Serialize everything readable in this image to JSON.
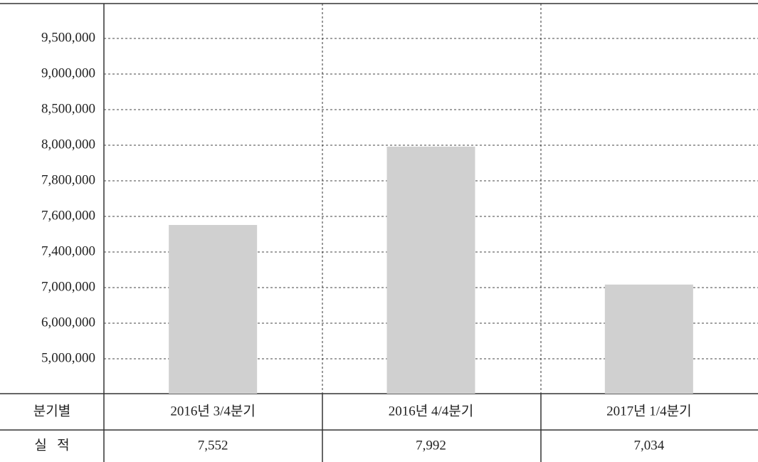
{
  "chart_data": {
    "type": "bar",
    "categories": [
      "2016년 3/4분기",
      "2016년 4/4분기",
      "2017년 1/4분기"
    ],
    "values": [
      7552000,
      7992000,
      7034000
    ],
    "value_labels": [
      "7,552",
      "7,992",
      "7,034"
    ],
    "row_labels": [
      "분기별",
      "실   적"
    ],
    "color": "#d0d0d0",
    "ylim": [
      4000000,
      10000000
    ],
    "yticks": [
      {
        "value": 5000000,
        "label": "5,000,000"
      },
      {
        "value": 6000000,
        "label": "6,000,000"
      },
      {
        "value": 7000000,
        "label": "7,000,000"
      },
      {
        "value": 7400000,
        "label": "7,400,000"
      },
      {
        "value": 7600000,
        "label": "7,600,000"
      },
      {
        "value": 7800000,
        "label": "7,800,000"
      },
      {
        "value": 8000000,
        "label": "8,000,000"
      },
      {
        "value": 8500000,
        "label": "8,500,000"
      },
      {
        "value": 9000000,
        "label": "9,000,000"
      },
      {
        "value": 9500000,
        "label": "9,500,000"
      }
    ],
    "grid": true
  }
}
